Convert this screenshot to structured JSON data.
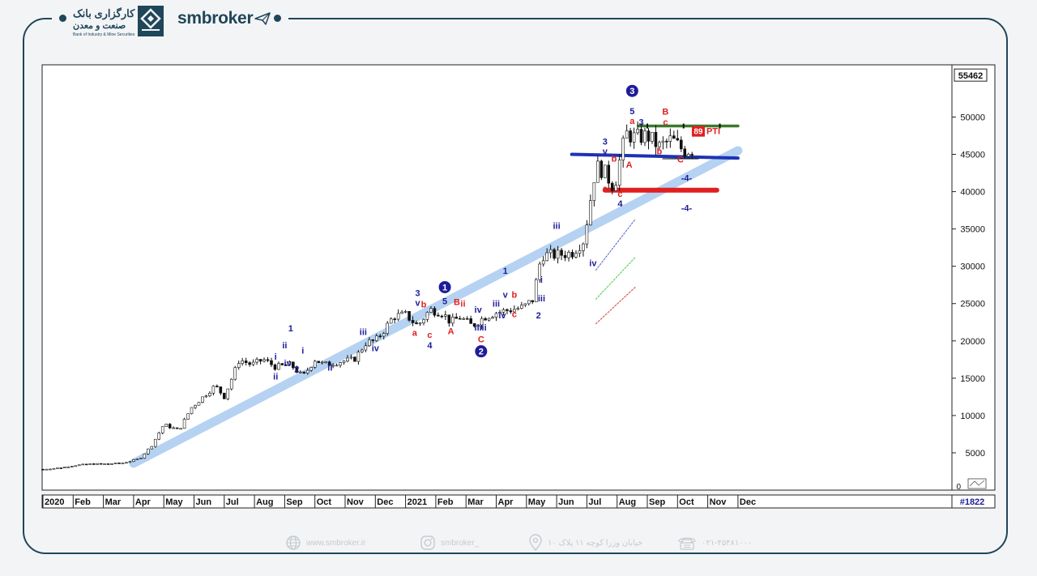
{
  "header": {
    "bank_name_line1": "کارگزاری بانک",
    "bank_name_line2": "صنعت و معدن",
    "bank_name_en": "Bank of Industry & Mine Securities",
    "brand": "smbroker"
  },
  "footer": {
    "website": "www.smbroker.ir",
    "instagram": "smbroker_",
    "address": "خیابان وزرا کوچه ۱۱ پلاک ۱۰",
    "phone": "۰۲۱-۴۵۴۸۱۰۰۰"
  },
  "chart_data": {
    "type": "candlestick",
    "instrument": "#1822",
    "last_price_label": "55462",
    "ylim": [
      0,
      57000
    ],
    "y_ticks": [
      5000,
      10000,
      15000,
      20000,
      25000,
      30000,
      35000,
      40000,
      45000,
      50000
    ],
    "y_tick_labels": [
      "5000",
      "10000",
      "15000",
      "20000",
      "25000",
      "30000",
      "35000",
      "40000",
      "45000",
      "50000"
    ],
    "zero_label": "0",
    "x_tick_labels": [
      "2020",
      "Feb",
      "Mar",
      "Apr",
      "May",
      "Jun",
      "Jul",
      "Aug",
      "Sep",
      "Oct",
      "Nov",
      "Dec",
      "2021",
      "Feb",
      "Mar",
      "Apr",
      "May",
      "Jun",
      "Jul",
      "Aug",
      "Sep",
      "Oct",
      "Nov",
      "Dec"
    ],
    "x_tick_month_index": [
      0,
      1,
      2,
      3,
      4,
      5,
      6,
      7,
      8,
      9,
      10,
      11,
      12,
      13,
      14,
      15,
      16,
      17,
      18,
      19,
      20,
      21,
      22,
      23
    ],
    "price_path": [
      [
        0.0,
        2800
      ],
      [
        0.6,
        3000
      ],
      [
        1.0,
        3300
      ],
      [
        1.6,
        3500
      ],
      [
        2.0,
        3500
      ],
      [
        2.6,
        3600
      ],
      [
        3.2,
        4200
      ],
      [
        3.6,
        6000
      ],
      [
        4.0,
        8800
      ],
      [
        4.5,
        8000
      ],
      [
        4.9,
        11000
      ],
      [
        5.3,
        12500
      ],
      [
        5.7,
        14000
      ],
      [
        6.0,
        12500
      ],
      [
        6.5,
        17500
      ],
      [
        6.9,
        16800
      ],
      [
        7.3,
        17500
      ],
      [
        7.7,
        16500
      ],
      [
        8.2,
        16800
      ],
      [
        8.6,
        15200
      ],
      [
        9.0,
        17500
      ],
      [
        9.3,
        16800
      ],
      [
        9.8,
        17200
      ],
      [
        10.3,
        17500
      ],
      [
        10.7,
        19800
      ],
      [
        11.0,
        20000
      ],
      [
        11.3,
        21500
      ],
      [
        11.6,
        23300
      ],
      [
        12.0,
        23500
      ],
      [
        12.4,
        22000
      ],
      [
        12.8,
        24200
      ],
      [
        13.2,
        23800
      ],
      [
        13.5,
        22500
      ],
      [
        13.8,
        23200
      ],
      [
        14.2,
        22000
      ],
      [
        14.6,
        23200
      ],
      [
        15.0,
        23800
      ],
      [
        15.5,
        24200
      ],
      [
        15.9,
        24500
      ],
      [
        16.2,
        25500
      ],
      [
        16.5,
        31500
      ],
      [
        17.0,
        31500
      ],
      [
        17.5,
        31800
      ],
      [
        17.9,
        33500
      ],
      [
        18.3,
        43500
      ],
      [
        18.6,
        42500
      ],
      [
        18.9,
        40500
      ],
      [
        19.1,
        44500
      ],
      [
        19.3,
        47800
      ],
      [
        19.6,
        47200
      ],
      [
        20.0,
        47500
      ],
      [
        20.4,
        46000
      ],
      [
        20.8,
        47000
      ],
      [
        21.2,
        45500
      ],
      [
        21.5,
        45700
      ]
    ],
    "overlay_lines": [
      {
        "color": "#a9cbf0",
        "points": [
          [
            3.0,
            3600
          ],
          [
            23.0,
            45500
          ]
        ]
      },
      {
        "color": "#1d33b3",
        "points": [
          [
            17.5,
            45000
          ],
          [
            23.0,
            44500
          ]
        ]
      },
      {
        "color": "#e02020",
        "points": [
          [
            18.6,
            40200
          ],
          [
            22.3,
            40200
          ]
        ]
      },
      {
        "color": "#3a7a2a",
        "points": [
          [
            19.7,
            48800
          ],
          [
            23.0,
            48800
          ]
        ]
      },
      {
        "color": "#6a7ad0",
        "points": [
          [
            18.3,
            29500
          ],
          [
            19.6,
            36300
          ]
        ]
      },
      {
        "color": "#5fd35f",
        "points": [
          [
            18.3,
            25600
          ],
          [
            19.6,
            31200
          ]
        ]
      },
      {
        "color": "#e05a5a",
        "points": [
          [
            18.3,
            22300
          ],
          [
            19.6,
            27200
          ]
        ]
      }
    ],
    "wave_labels": [
      {
        "text": "1",
        "x": 8.2,
        "y": 21300,
        "color": "#1d1d9a"
      },
      {
        "text": "ii",
        "x": 8.0,
        "y": 19000,
        "color": "#1d1d9a"
      },
      {
        "text": "i",
        "x": 7.7,
        "y": 17500,
        "color": "#1d1d9a"
      },
      {
        "text": "iv",
        "x": 8.1,
        "y": 16600,
        "color": "#1d1d9a"
      },
      {
        "text": "2",
        "x": 8.4,
        "y": 15800,
        "color": "#1d1d9a"
      },
      {
        "text": "ii",
        "x": 7.7,
        "y": 14800,
        "color": "#1d1d9a"
      },
      {
        "text": "i",
        "x": 8.6,
        "y": 18300,
        "color": "#1d1d9a"
      },
      {
        "text": "ii",
        "x": 9.5,
        "y": 16000,
        "color": "#1d1d9a"
      },
      {
        "text": "iii",
        "x": 10.6,
        "y": 20800,
        "color": "#1d1d9a"
      },
      {
        "text": "iv",
        "x": 11.0,
        "y": 18600,
        "color": "#1d1d9a"
      },
      {
        "text": "3",
        "x": 12.4,
        "y": 26000,
        "color": "#1d1d9a"
      },
      {
        "text": "v",
        "x": 12.4,
        "y": 24700,
        "color": "#1d1d9a"
      },
      {
        "text": "b",
        "x": 12.6,
        "y": 24500,
        "color": "#e02020"
      },
      {
        "text": "a",
        "x": 12.3,
        "y": 20700,
        "color": "#e02020"
      },
      {
        "text": "c",
        "x": 12.8,
        "y": 20400,
        "color": "#e02020"
      },
      {
        "text": "4",
        "x": 12.8,
        "y": 19000,
        "color": "#1d1d9a"
      },
      {
        "text": "5",
        "x": 13.3,
        "y": 24900,
        "color": "#1d1d9a"
      },
      {
        "text": "B",
        "x": 13.7,
        "y": 24800,
        "color": "#e02020"
      },
      {
        "text": "ii",
        "x": 13.9,
        "y": 24600,
        "color": "#e02020"
      },
      {
        "text": "A",
        "x": 13.5,
        "y": 20900,
        "color": "#e02020"
      },
      {
        "text": "iv",
        "x": 14.4,
        "y": 23800,
        "color": "#1d1d9a"
      },
      {
        "text": "iii",
        "x": 14.4,
        "y": 21400,
        "color": "#1d1d9a"
      },
      {
        "text": "ii",
        "x": 14.6,
        "y": 21400,
        "color": "#1d1d9a"
      },
      {
        "text": "C",
        "x": 14.5,
        "y": 19800,
        "color": "#e02020"
      },
      {
        "text": "iii",
        "x": 15.0,
        "y": 24600,
        "color": "#1d1d9a"
      },
      {
        "text": "iv",
        "x": 15.2,
        "y": 23000,
        "color": "#1d1d9a"
      },
      {
        "text": "c",
        "x": 15.6,
        "y": 23200,
        "color": "#e02020"
      },
      {
        "text": "1",
        "x": 15.3,
        "y": 29000,
        "color": "#1d1d9a"
      },
      {
        "text": "v",
        "x": 15.3,
        "y": 25800,
        "color": "#1d1d9a"
      },
      {
        "text": "b",
        "x": 15.6,
        "y": 25800,
        "color": "#e02020"
      },
      {
        "text": "i",
        "x": 16.5,
        "y": 27800,
        "color": "#1d1d9a"
      },
      {
        "text": "iii",
        "x": 16.5,
        "y": 25300,
        "color": "#1d1d9a"
      },
      {
        "text": "2",
        "x": 16.4,
        "y": 23000,
        "color": "#1d1d9a"
      },
      {
        "text": "iii",
        "x": 17.0,
        "y": 35000,
        "color": "#1d1d9a"
      },
      {
        "text": "iv",
        "x": 18.2,
        "y": 30000,
        "color": "#1d1d9a"
      },
      {
        "text": "3",
        "x": 18.6,
        "y": 46300,
        "color": "#1d1d9a"
      },
      {
        "text": "v",
        "x": 18.6,
        "y": 45000,
        "color": "#1d1d9a"
      },
      {
        "text": "b",
        "x": 18.9,
        "y": 44000,
        "color": "#e02020"
      },
      {
        "text": "a",
        "x": 18.6,
        "y": 40000,
        "color": "#e02020"
      },
      {
        "text": "c",
        "x": 19.1,
        "y": 39300,
        "color": "#e02020"
      },
      {
        "text": "4",
        "x": 19.1,
        "y": 38000,
        "color": "#1d1d9a"
      },
      {
        "text": "A",
        "x": 19.4,
        "y": 43200,
        "color": "#e02020"
      },
      {
        "text": "5",
        "x": 19.5,
        "y": 50400,
        "color": "#1d1d9a"
      },
      {
        "text": "a",
        "x": 19.5,
        "y": 49100,
        "color": "#e02020"
      },
      {
        "text": "3",
        "x": 19.8,
        "y": 48900,
        "color": "#1d1d9a"
      },
      {
        "text": "B",
        "x": 20.6,
        "y": 50300,
        "color": "#e02020"
      },
      {
        "text": "c",
        "x": 20.6,
        "y": 48900,
        "color": "#e02020"
      },
      {
        "text": "b",
        "x": 20.4,
        "y": 45000,
        "color": "#e02020"
      },
      {
        "text": "C",
        "x": 21.1,
        "y": 43900,
        "color": "#e02020"
      },
      {
        "text": "-4-",
        "x": 21.3,
        "y": 41400,
        "color": "#1d1d9a"
      },
      {
        "text": "-4-",
        "x": 21.3,
        "y": 37400,
        "color": "#1d1d9a"
      }
    ],
    "circled_labels": [
      {
        "text": "1",
        "x": 13.3,
        "y": 27200
      },
      {
        "text": "2",
        "x": 14.5,
        "y": 18600
      },
      {
        "text": "3",
        "x": 19.5,
        "y": 53500
      }
    ],
    "pti_label": {
      "number": "89",
      "text": "PTI"
    }
  }
}
